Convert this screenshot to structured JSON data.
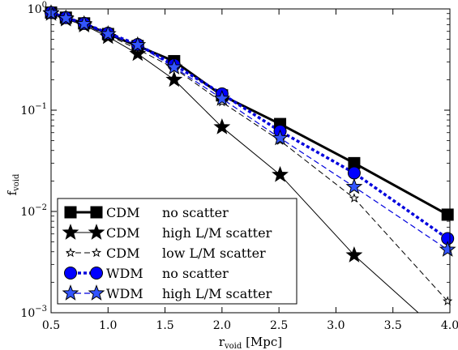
{
  "chart_data": {
    "type": "line",
    "xlabel": "r",
    "xlabel_sub": "void",
    "xlabel_unit": " [Mpc]",
    "ylabel": "f",
    "ylabel_sub": "void",
    "xlim": [
      0.5,
      4.0
    ],
    "ylim": [
      0.001,
      1.0
    ],
    "yscale": "log",
    "grid": false,
    "legend_position": "lower-left",
    "x_ticks": [
      "0.5",
      "1.0",
      "1.5",
      "2.0",
      "2.5",
      "3.0",
      "3.5",
      "4.0"
    ],
    "y_tick_values": [
      1,
      0.1,
      0.01,
      0.001
    ],
    "y_tick_labels": [
      {
        "base": "10",
        "exp": "0"
      },
      {
        "base": "10",
        "exp": "−1"
      },
      {
        "base": "10",
        "exp": "−2"
      },
      {
        "base": "10",
        "exp": "−3"
      }
    ],
    "series": [
      {
        "id": "cdm_no",
        "label_model": "CDM",
        "label_desc": "no scatter",
        "color": "#000000",
        "dash": "solid",
        "width": 3,
        "marker": "square",
        "marker_fill": "#000000",
        "x": [
          0.5,
          0.63,
          0.79,
          1.0,
          1.26,
          1.58,
          2.0,
          2.51,
          3.16,
          3.98
        ],
        "y": [
          0.92,
          0.82,
          0.72,
          0.565,
          0.43,
          0.305,
          0.14,
          0.073,
          0.03,
          0.0093
        ]
      },
      {
        "id": "cdm_high",
        "label_model": "CDM",
        "label_desc": "high L/M scatter",
        "color": "#000000",
        "dash": "solid",
        "width": 1,
        "marker": "star",
        "marker_fill": "#000000",
        "x": [
          0.5,
          0.63,
          0.79,
          1.0,
          1.26,
          1.58,
          2.0,
          2.51,
          3.16,
          3.98
        ],
        "y": [
          0.9,
          0.79,
          0.69,
          0.53,
          0.36,
          0.2,
          0.068,
          0.023,
          0.0037,
          0.00055
        ]
      },
      {
        "id": "cdm_low",
        "label_model": "CDM",
        "label_desc": "low L/M scatter",
        "color": "#000000",
        "dash": "dashed",
        "width": 1,
        "marker": "star-open",
        "marker_fill": "#ffffff",
        "x": [
          0.5,
          0.63,
          0.79,
          1.0,
          1.26,
          1.58,
          2.0,
          2.51,
          3.16,
          3.98
        ],
        "y": [
          0.91,
          0.8,
          0.7,
          0.55,
          0.4,
          0.26,
          0.12,
          0.05,
          0.0135,
          0.0013
        ]
      },
      {
        "id": "wdm_no",
        "label_model": "WDM",
        "label_desc": "no scatter",
        "color": "#0000dd",
        "dash": "dotted",
        "width": 3.5,
        "marker": "circle",
        "marker_fill": "#0000ff",
        "x": [
          0.5,
          0.63,
          0.79,
          1.0,
          1.26,
          1.58,
          2.0,
          2.51,
          3.16,
          3.98
        ],
        "y": [
          0.92,
          0.82,
          0.72,
          0.575,
          0.445,
          0.28,
          0.145,
          0.062,
          0.024,
          0.0054
        ]
      },
      {
        "id": "wdm_high",
        "label_model": "WDM",
        "label_desc": "high L/M scatter",
        "color": "#0000dd",
        "dash": "dashed",
        "width": 1.2,
        "marker": "star",
        "marker_fill": "#3355ff",
        "x": [
          0.5,
          0.63,
          0.79,
          1.0,
          1.26,
          1.58,
          2.0,
          2.51,
          3.16,
          3.98
        ],
        "y": [
          0.91,
          0.81,
          0.71,
          0.565,
          0.44,
          0.265,
          0.13,
          0.053,
          0.0175,
          0.0042
        ]
      }
    ]
  }
}
